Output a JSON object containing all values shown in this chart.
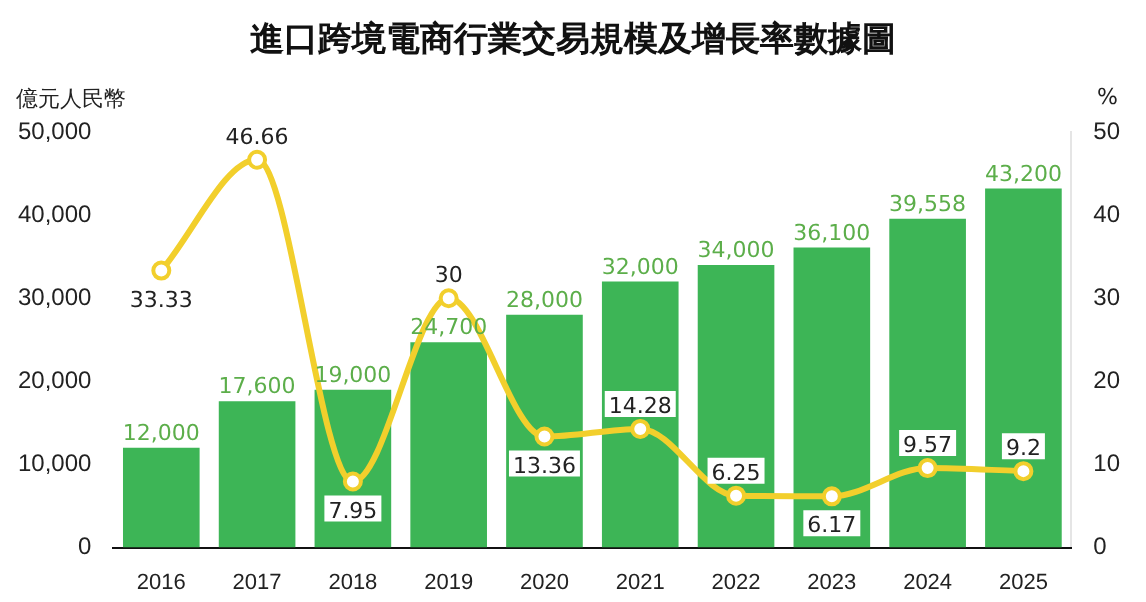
{
  "chart_data": {
    "type": "bar",
    "title": "進口跨境電商行業交易規模及增長率數據圖",
    "ylabel": "億元人民幣",
    "y2label": "%",
    "categories": [
      "2016",
      "2017",
      "2018",
      "2019",
      "2020",
      "2021",
      "2022",
      "2023",
      "2024",
      "2025"
    ],
    "series": [
      {
        "color": "#3db556",
        "values": [
          12000,
          17600,
          19000,
          24700,
          28000,
          32000,
          34000,
          36100,
          39558,
          43200
        ],
        "value_labels": [
          "12,000",
          "17,600",
          "19,000",
          "24,700",
          "28,000",
          "32,000",
          "34,000",
          "36,100",
          "39,558",
          "43,200"
        ]
      },
      {
        "type": "line",
        "axis": "y2",
        "color": "#f2cf2c",
        "marker": "circle",
        "values": [
          33.33,
          46.66,
          7.95,
          30,
          13.36,
          14.28,
          6.25,
          6.17,
          9.57,
          9.2
        ]
      }
    ],
    "ylim": [
      0,
      50000
    ],
    "yticks": [
      {
        "value": 0,
        "label": "0"
      },
      {
        "value": 10000,
        "label": "10,000"
      },
      {
        "value": 20000,
        "label": "20,000"
      },
      {
        "value": 30000,
        "label": "30,000"
      },
      {
        "value": 40000,
        "label": "40,000"
      },
      {
        "value": 50000,
        "label": "50,000"
      }
    ],
    "y2lim": [
      0,
      50
    ],
    "y2ticks": [
      0,
      10,
      20,
      30,
      40,
      50
    ],
    "data_labels": true,
    "grid": false,
    "legend": false
  }
}
